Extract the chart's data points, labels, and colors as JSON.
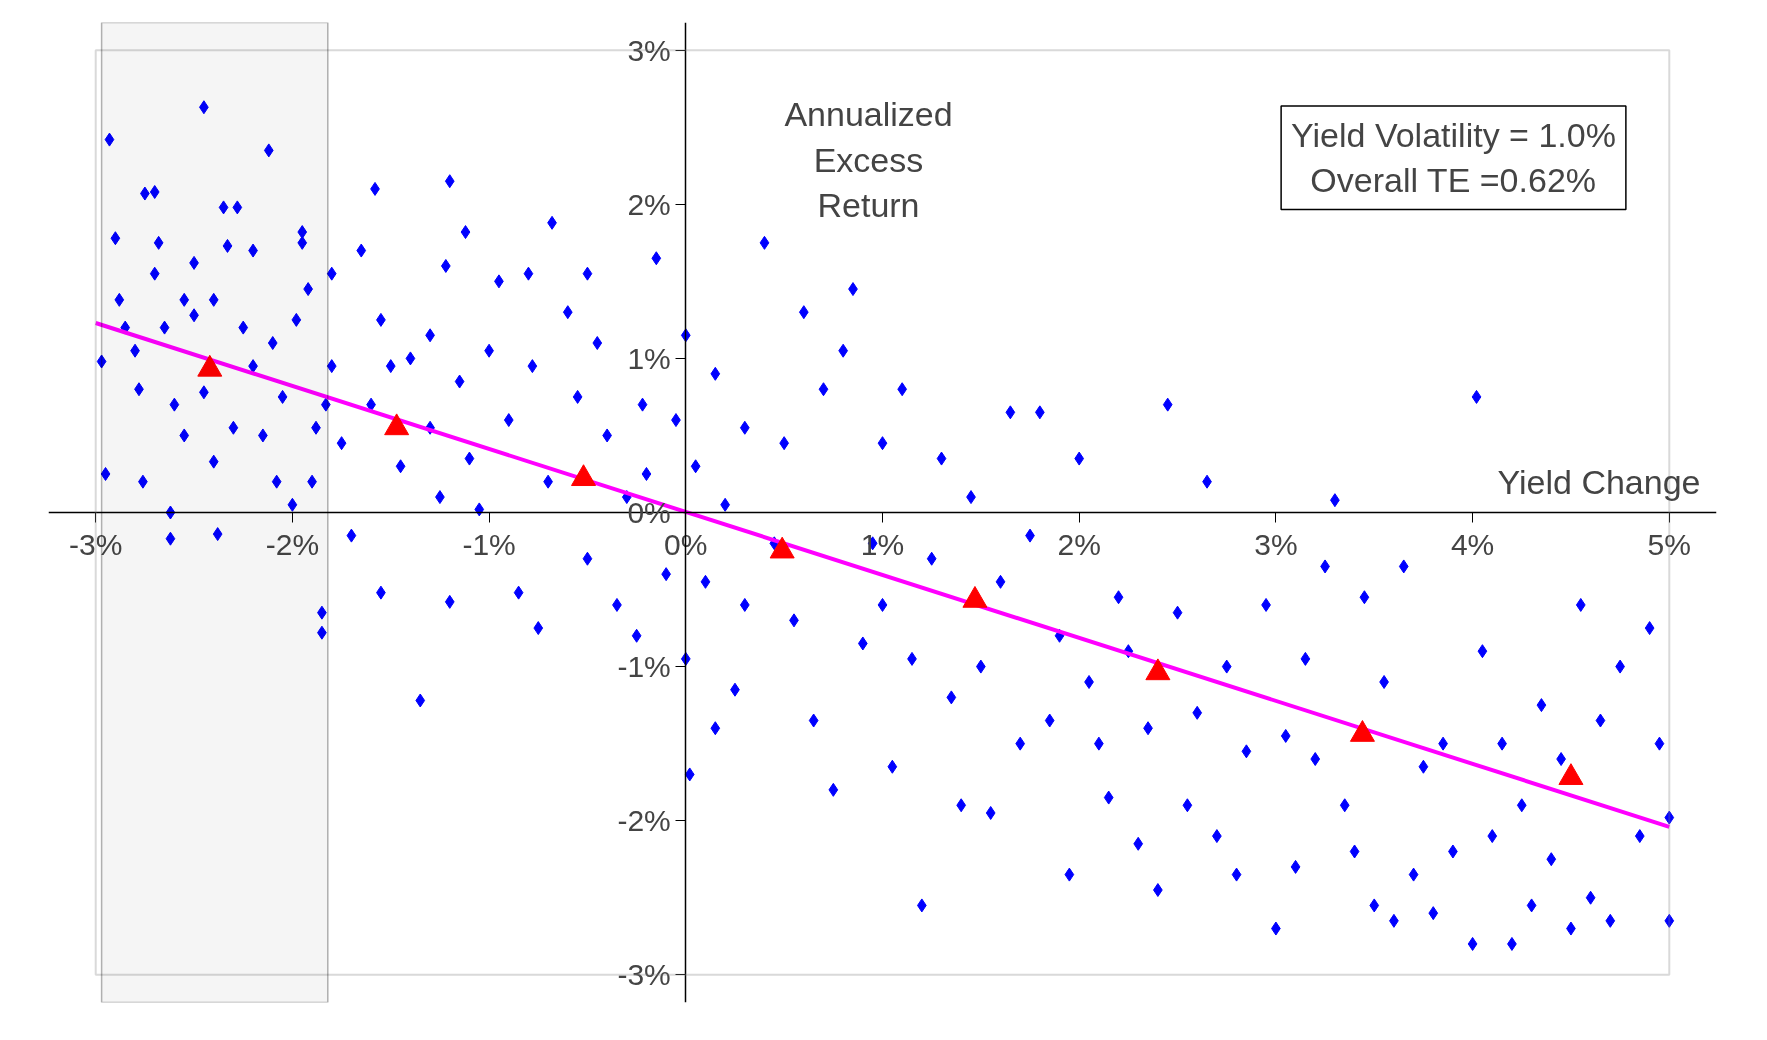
{
  "chart_data": {
    "type": "scatter",
    "xlabel": "Yield Change",
    "ylabel": "Annualized\nExcess\nReturn",
    "annotations": [
      "Yield Volatility = 1.0%\nOverall TE =0.62%"
    ],
    "xlim": [
      -3,
      5
    ],
    "ylim": [
      -3,
      3
    ],
    "xticks": [
      {
        "value": -3,
        "label": "-3%"
      },
      {
        "value": -2,
        "label": "-2%"
      },
      {
        "value": -1,
        "label": "-1%"
      },
      {
        "value": 0,
        "label": "0%"
      },
      {
        "value": 1,
        "label": "1%"
      },
      {
        "value": 2,
        "label": "2%"
      },
      {
        "value": 3,
        "label": "3%"
      },
      {
        "value": 4,
        "label": "4%"
      },
      {
        "value": 5,
        "label": "5%"
      }
    ],
    "yticks": [
      {
        "value": -3,
        "label": "-3%"
      },
      {
        "value": -2,
        "label": "-2%"
      },
      {
        "value": -1,
        "label": "-1%"
      },
      {
        "value": 0,
        "label": "0%"
      },
      {
        "value": 1,
        "label": "1%"
      },
      {
        "value": 2,
        "label": "2%"
      },
      {
        "value": 3,
        "label": "3%"
      }
    ],
    "grid": false,
    "bands": [
      {
        "axis": "x",
        "from": -2.97,
        "to": -1.82,
        "color": "#000000"
      }
    ],
    "series": [
      {
        "marker": "diamond",
        "color": "#0000ff",
        "x": [
          -2.97,
          -2.95,
          -2.93,
          -2.9,
          -2.88,
          -2.85,
          -2.8,
          -2.78,
          -2.76,
          -2.75,
          -2.7,
          -2.7,
          -2.68,
          -2.65,
          -2.62,
          -2.62,
          -2.6,
          -2.55,
          -2.55,
          -2.5,
          -2.5,
          -2.45,
          -2.45,
          -2.4,
          -2.4,
          -2.38,
          -2.35,
          -2.33,
          -2.3,
          -2.28,
          -2.25,
          -2.2,
          -2.2,
          -2.15,
          -2.12,
          -2.1,
          -2.08,
          -2.05,
          -2.0,
          -1.98,
          -1.95,
          -1.95,
          -1.92,
          -1.9,
          -1.88,
          -1.85,
          -1.85,
          -1.83,
          -1.8,
          -1.8,
          -1.75,
          -1.7,
          -1.65,
          -1.6,
          -1.58,
          -1.55,
          -1.55,
          -1.5,
          -1.45,
          -1.4,
          -1.35,
          -1.3,
          -1.3,
          -1.25,
          -1.22,
          -1.2,
          -1.2,
          -1.15,
          -1.12,
          -1.1,
          -1.05,
          -1.0,
          -0.95,
          -0.9,
          -0.85,
          -0.8,
          -0.78,
          -0.75,
          -0.7,
          -0.68,
          -0.6,
          -0.55,
          -0.5,
          -0.5,
          -0.45,
          -0.4,
          -0.35,
          -0.3,
          -0.25,
          -0.22,
          -0.2,
          -0.15,
          -0.1,
          -0.05,
          0.0,
          0.0,
          0.02,
          0.05,
          0.1,
          0.15,
          0.15,
          0.2,
          0.25,
          0.3,
          0.3,
          0.4,
          0.45,
          0.5,
          0.55,
          0.6,
          0.65,
          0.7,
          0.75,
          0.8,
          0.85,
          0.9,
          0.95,
          1.0,
          1.0,
          1.05,
          1.1,
          1.15,
          1.2,
          1.25,
          1.3,
          1.35,
          1.4,
          1.45,
          1.5,
          1.55,
          1.6,
          1.65,
          1.7,
          1.75,
          1.8,
          1.85,
          1.9,
          1.95,
          2.0,
          2.05,
          2.1,
          2.15,
          2.2,
          2.25,
          2.3,
          2.35,
          2.4,
          2.45,
          2.5,
          2.55,
          2.6,
          2.65,
          2.7,
          2.75,
          2.8,
          2.85,
          2.95,
          3.0,
          3.05,
          3.1,
          3.15,
          3.2,
          3.25,
          3.3,
          3.35,
          3.4,
          3.45,
          3.5,
          3.55,
          3.6,
          3.65,
          3.7,
          3.75,
          3.8,
          3.85,
          3.9,
          4.0,
          4.02,
          4.05,
          4.1,
          4.15,
          4.2,
          4.25,
          4.3,
          4.35,
          4.4,
          4.45,
          4.5,
          4.55,
          4.6,
          4.65,
          4.7,
          4.75,
          4.85,
          4.9,
          4.95,
          5.0,
          5.0
        ],
        "values": [
          0.98,
          0.25,
          2.42,
          1.78,
          1.38,
          1.2,
          1.05,
          0.8,
          0.2,
          2.07,
          2.08,
          1.55,
          1.75,
          1.2,
          0.0,
          -0.17,
          0.7,
          1.38,
          0.5,
          1.62,
          1.28,
          2.63,
          0.78,
          1.38,
          0.33,
          -0.14,
          1.98,
          1.73,
          0.55,
          1.98,
          1.2,
          0.95,
          1.7,
          0.5,
          2.35,
          1.1,
          0.2,
          0.75,
          0.05,
          1.25,
          1.75,
          1.82,
          1.45,
          0.2,
          0.55,
          -0.65,
          -0.78,
          0.7,
          1.55,
          0.95,
          0.45,
          -0.15,
          1.7,
          0.7,
          2.1,
          1.25,
          -0.52,
          0.95,
          0.3,
          1.0,
          -1.22,
          1.15,
          0.55,
          0.1,
          1.6,
          2.15,
          -0.58,
          0.85,
          1.82,
          0.35,
          0.02,
          1.05,
          1.5,
          0.6,
          -0.52,
          1.55,
          0.95,
          -0.75,
          0.2,
          1.88,
          1.3,
          0.75,
          1.55,
          -0.3,
          1.1,
          0.5,
          -0.6,
          0.1,
          -0.8,
          0.7,
          0.25,
          1.65,
          -0.4,
          0.6,
          -0.95,
          1.15,
          -1.7,
          0.3,
          -0.45,
          0.9,
          -1.4,
          0.05,
          -1.15,
          0.55,
          -0.6,
          1.75,
          -0.2,
          0.45,
          -0.7,
          1.3,
          -1.35,
          0.8,
          -1.8,
          1.05,
          1.45,
          -0.85,
          -0.2,
          0.45,
          -0.6,
          -1.65,
          0.8,
          -0.95,
          -2.55,
          -0.3,
          0.35,
          -1.2,
          -1.9,
          0.1,
          -1.0,
          -1.95,
          -0.45,
          0.65,
          -1.5,
          -0.15,
          0.65,
          -1.35,
          -0.8,
          -2.35,
          0.35,
          -1.1,
          -1.5,
          -1.85,
          -0.55,
          -0.9,
          -2.15,
          -1.4,
          -2.45,
          0.7,
          -0.65,
          -1.9,
          -1.3,
          0.2,
          -2.1,
          -1.0,
          -2.35,
          -1.55,
          -0.6,
          -2.7,
          -1.45,
          -2.3,
          -0.95,
          -1.6,
          -0.35,
          0.08,
          -1.9,
          -2.2,
          -0.55,
          -2.55,
          -1.1,
          -2.65,
          -0.35,
          -2.35,
          -1.65,
          -2.6,
          -1.5,
          -2.2,
          -2.8,
          0.75,
          -0.9,
          -2.1,
          -1.5,
          -2.8,
          -1.9,
          -2.55,
          -1.25,
          -2.25,
          -1.6,
          -2.7,
          -0.6,
          -2.5,
          -1.35,
          -2.65,
          -1.0,
          -2.1,
          -0.75,
          -1.5,
          -2.65,
          -1.98
        ]
      },
      {
        "type": "line",
        "marker": "none",
        "line_style": "solid",
        "color": "#ff00ff",
        "x": [
          -3,
          5
        ],
        "values": [
          1.23,
          -2.04
        ]
      },
      {
        "marker": "triangle",
        "color": "#ff0000",
        "x": [
          -2.42,
          -1.47,
          -0.52,
          0.49,
          1.47,
          2.4,
          3.44,
          4.5
        ],
        "values": [
          0.93,
          0.55,
          0.22,
          -0.25,
          -0.57,
          -1.04,
          -1.44,
          -1.72
        ]
      }
    ]
  }
}
